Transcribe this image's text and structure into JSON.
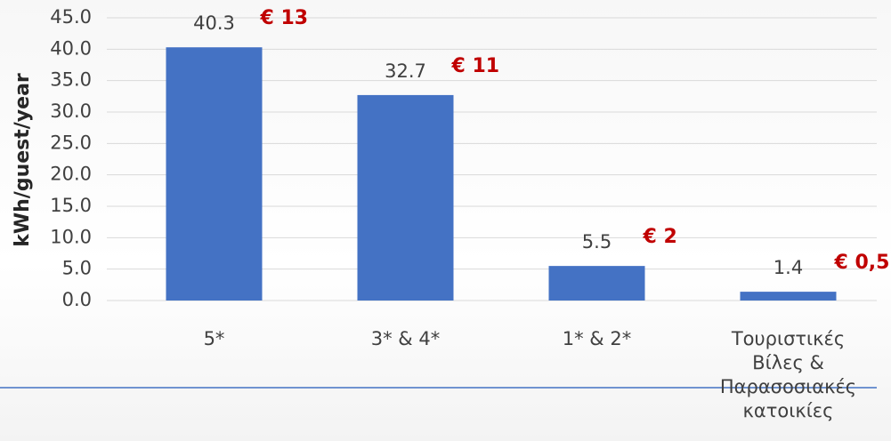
{
  "chart_data": {
    "type": "bar",
    "y_axis_label": "kWh/guest/year",
    "categories": [
      "5*",
      "3* & 4*",
      "1* & 2*",
      "Τουριστικές\nΒίλες &\nΠαρασοσιακές\nκατοικίες"
    ],
    "values": [
      40.3,
      32.7,
      5.5,
      1.4
    ],
    "annotations": [
      "€ 13",
      "€ 11",
      "€ 2",
      "€ 0,5"
    ],
    "color": "#4472c4",
    "ylim": [
      0,
      45
    ],
    "yticks": [
      {
        "value": 0,
        "label": "0.0"
      },
      {
        "value": 5,
        "label": "5.0"
      },
      {
        "value": 10,
        "label": "10.0"
      },
      {
        "value": 15,
        "label": "15.0"
      },
      {
        "value": 20,
        "label": "20.0"
      },
      {
        "value": 25,
        "label": "25.0"
      },
      {
        "value": 30,
        "label": "30.0"
      },
      {
        "value": 35,
        "label": "35.0"
      },
      {
        "value": 40,
        "label": "40.0"
      },
      {
        "value": 45,
        "label": "45.0"
      }
    ],
    "grid": true
  }
}
